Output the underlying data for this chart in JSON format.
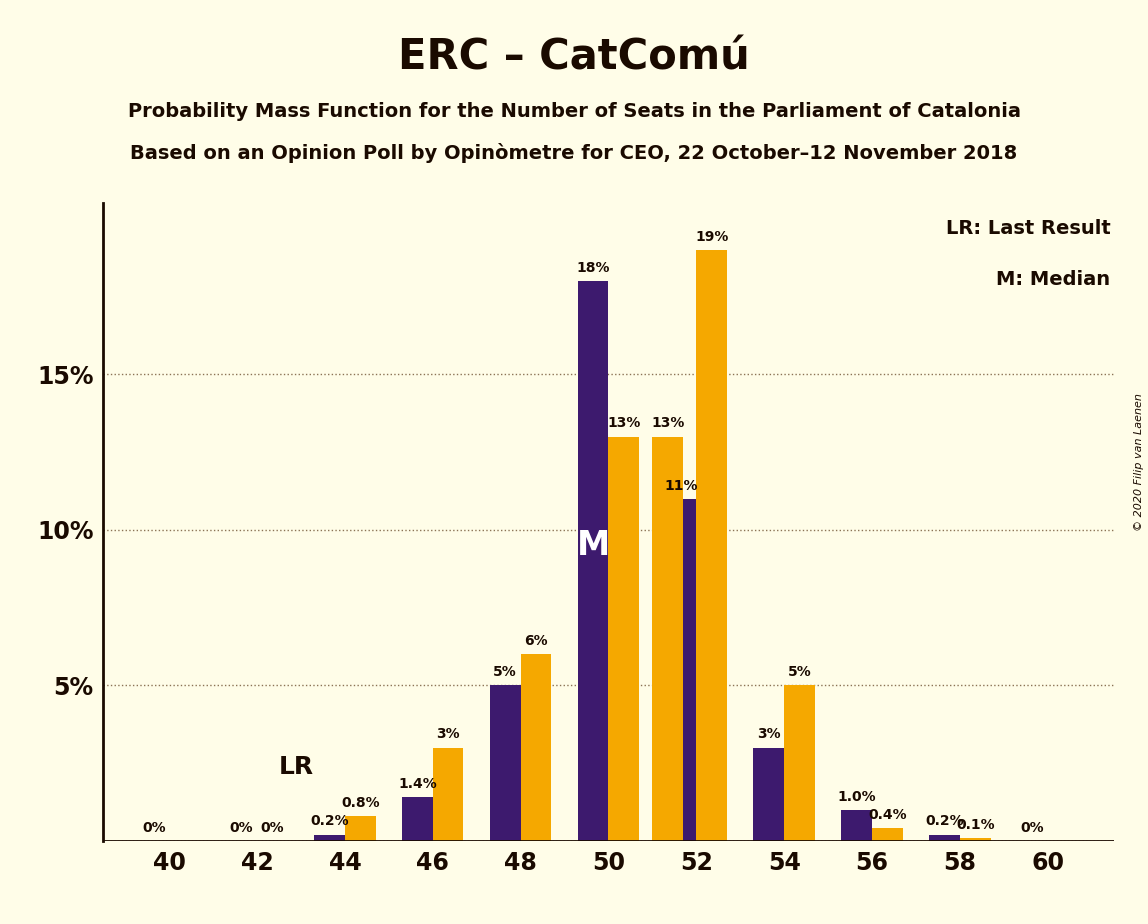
{
  "title": "ERC – CatComú",
  "subtitle1": "Probability Mass Function for the Number of Seats in the Parliament of Catalonia",
  "subtitle2": "Based on an Opinion Poll by Opinòmetre for CEO, 22 October–12 November 2018",
  "copyright": "© 2020 Filip van Laenen",
  "seats": [
    40,
    42,
    44,
    46,
    48,
    50,
    51,
    52,
    54,
    56,
    58,
    60
  ],
  "purple_values": [
    0.0,
    0.0,
    0.2,
    1.4,
    5.0,
    18.0,
    0.0,
    11.0,
    3.0,
    1.0,
    0.2,
    0.0
  ],
  "orange_values": [
    0.0,
    0.0,
    0.8,
    3.0,
    6.0,
    13.0,
    13.0,
    19.0,
    5.0,
    0.4,
    0.1,
    0.0
  ],
  "purple_labels": [
    "0%",
    "0%",
    "0.2%",
    "1.4%",
    "5%",
    "18%",
    "",
    "11%",
    "3%",
    "1.0%",
    "0.2%",
    "0%"
  ],
  "orange_labels": [
    "",
    "0%",
    "0.8%",
    "3%",
    "6%",
    "13%",
    "13%",
    "19%",
    "5%",
    "0.4%",
    "0.1%",
    ""
  ],
  "purple_color": "#3d1a6e",
  "orange_color": "#f5a800",
  "background_color": "#fffde8",
  "text_color": "#1a0a00",
  "lr_seat_index": 2,
  "median_seat_index": 5,
  "ylim": [
    0,
    20.5
  ],
  "yticks": [
    0,
    5,
    10,
    15
  ],
  "ytick_labels": [
    "",
    "5%",
    "10%",
    "15%"
  ],
  "xticks": [
    40,
    42,
    44,
    46,
    48,
    50,
    52,
    54,
    56,
    58,
    60
  ],
  "bar_width": 0.7,
  "figsize": [
    11.48,
    9.24
  ],
  "dpi": 100,
  "label_fontsize": 10,
  "tick_fontsize": 17,
  "title_fontsize": 30,
  "subtitle_fontsize": 14,
  "legend_fontsize": 14
}
